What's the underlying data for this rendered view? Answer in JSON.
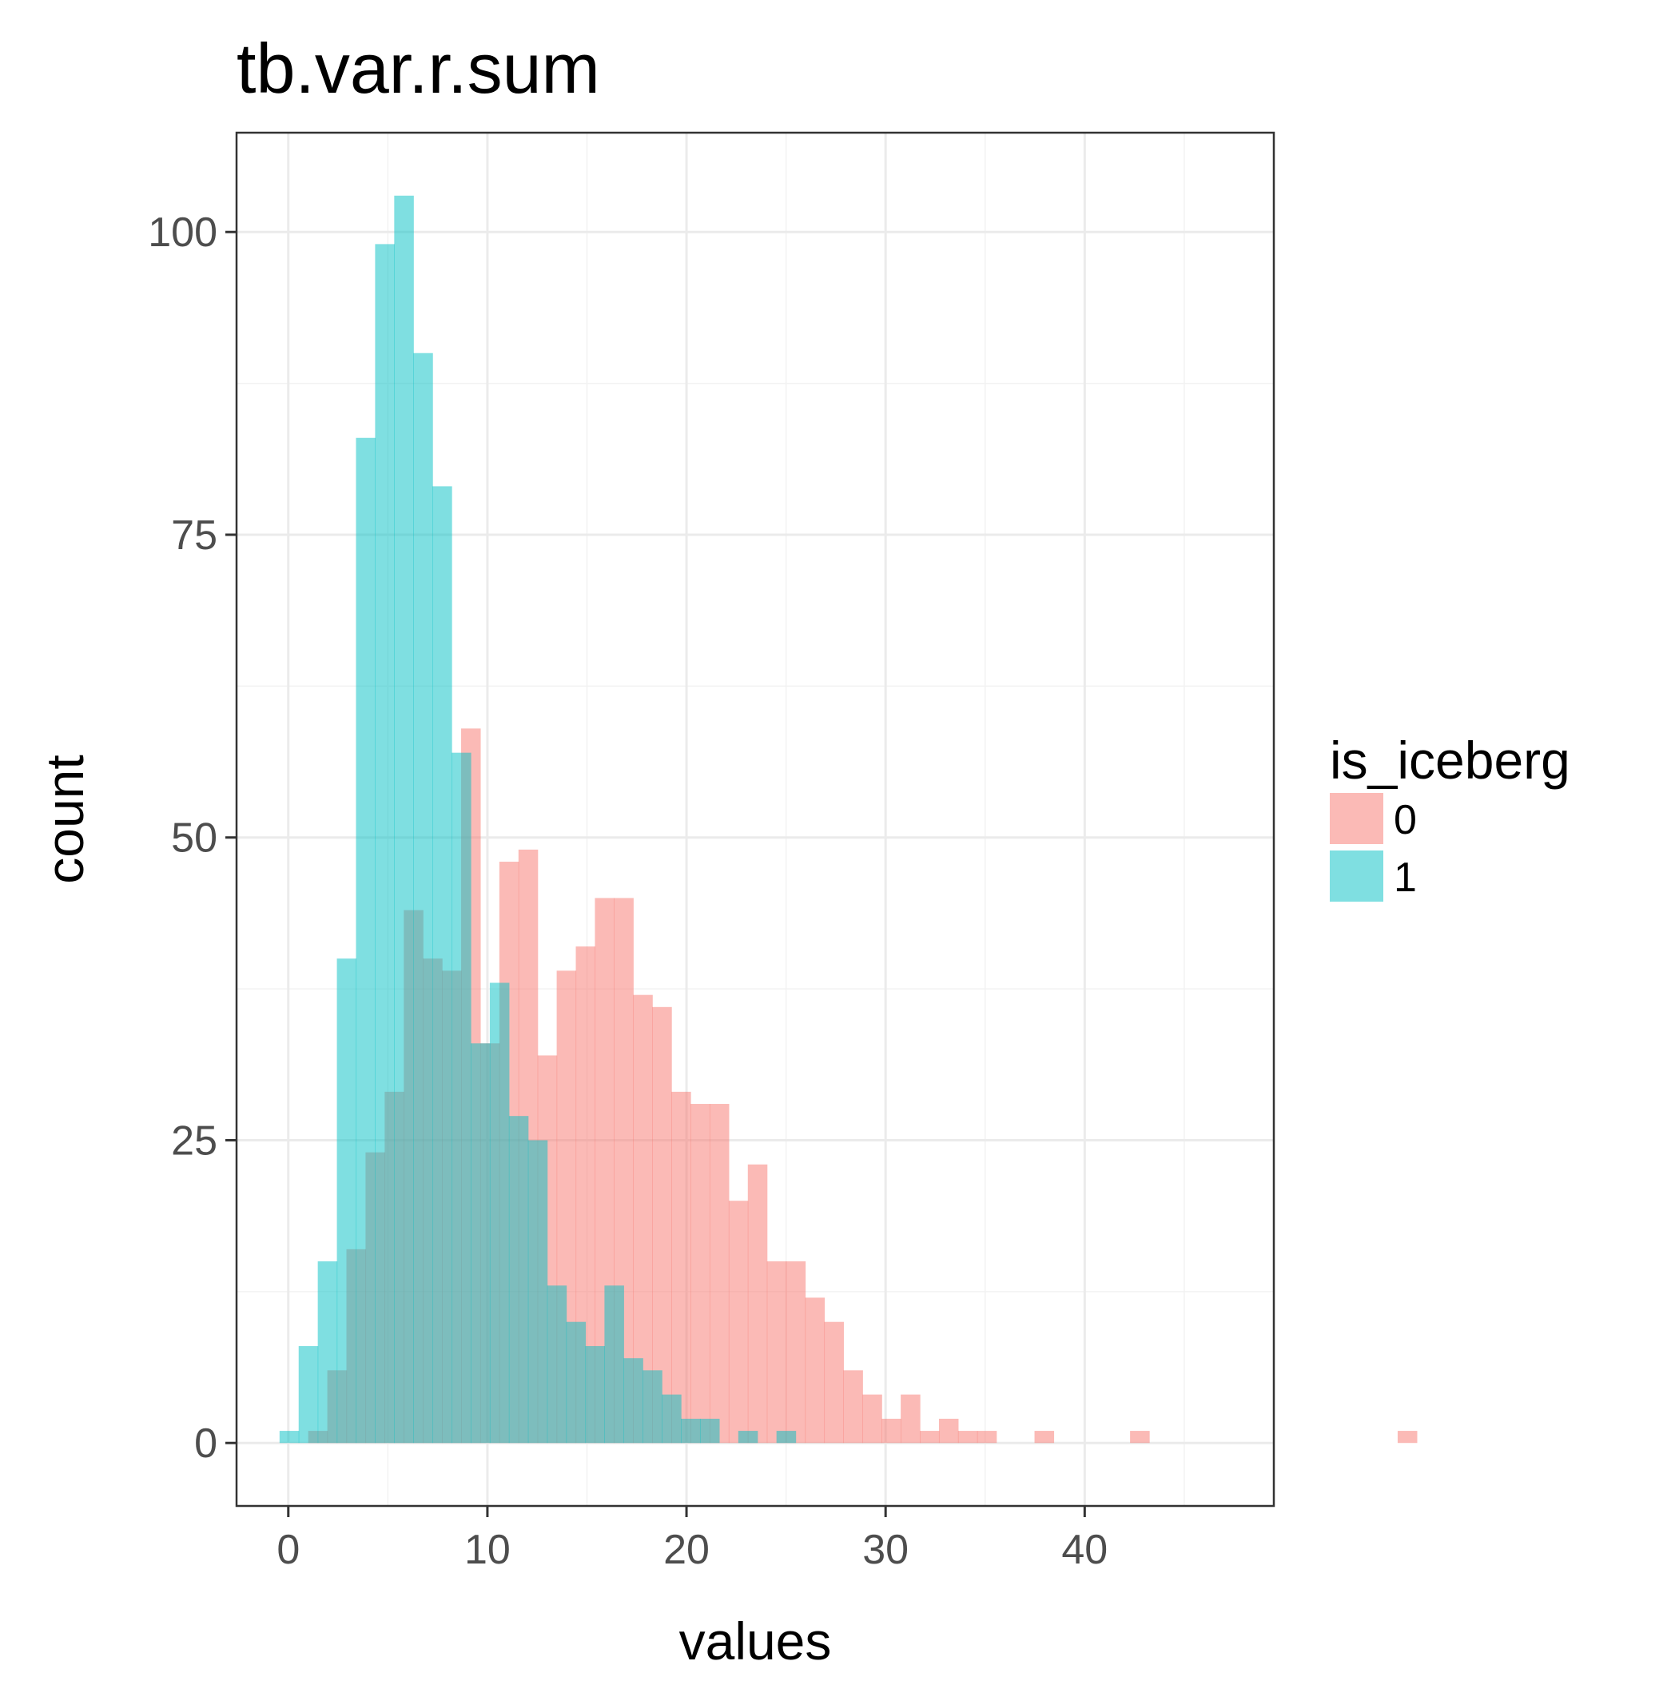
{
  "chart_data": {
    "type": "histogram",
    "title": "tb.var.r.sum",
    "xlabel": "values",
    "ylabel": "count",
    "xlim": [
      -2.6,
      49.5
    ],
    "ylim": [
      -5.2,
      108.2
    ],
    "x_ticks": [
      0,
      10,
      20,
      30,
      40
    ],
    "x_tick_labels": [
      "0",
      "10",
      "20",
      "30",
      "40"
    ],
    "y_ticks": [
      0,
      25,
      50,
      75,
      100
    ],
    "y_tick_labels": [
      "0",
      "25",
      "50",
      "75",
      "100"
    ],
    "grid": true,
    "bin_width": 0.96,
    "legend": {
      "title": "is_iceberg",
      "placement": "right",
      "entries": [
        "0",
        "1"
      ]
    },
    "series": [
      {
        "name": "0",
        "color": "#F8766D",
        "opacity": 0.5,
        "bin_start": 0.04,
        "counts": [
          0,
          1,
          6,
          16,
          24,
          29,
          44,
          40,
          39,
          59,
          33,
          48,
          49,
          32,
          39,
          41,
          45,
          45,
          37,
          36,
          29,
          28,
          28,
          20,
          23,
          15,
          15,
          12,
          10,
          6,
          4,
          2,
          4,
          1,
          2,
          1,
          1,
          0,
          0,
          1,
          0,
          0,
          0,
          0,
          1,
          0,
          0,
          0,
          0,
          0,
          0,
          0,
          0,
          0,
          0,
          0,
          0,
          0,
          1
        ]
      },
      {
        "name": "1",
        "color": "#00BFC4",
        "opacity": 0.5,
        "bin_start": -0.44,
        "counts": [
          1,
          8,
          15,
          40,
          83,
          99,
          103,
          90,
          79,
          57,
          33,
          38,
          27,
          25,
          13,
          10,
          8,
          13,
          7,
          6,
          4,
          2,
          2,
          0,
          1,
          0,
          1
        ]
      }
    ]
  }
}
